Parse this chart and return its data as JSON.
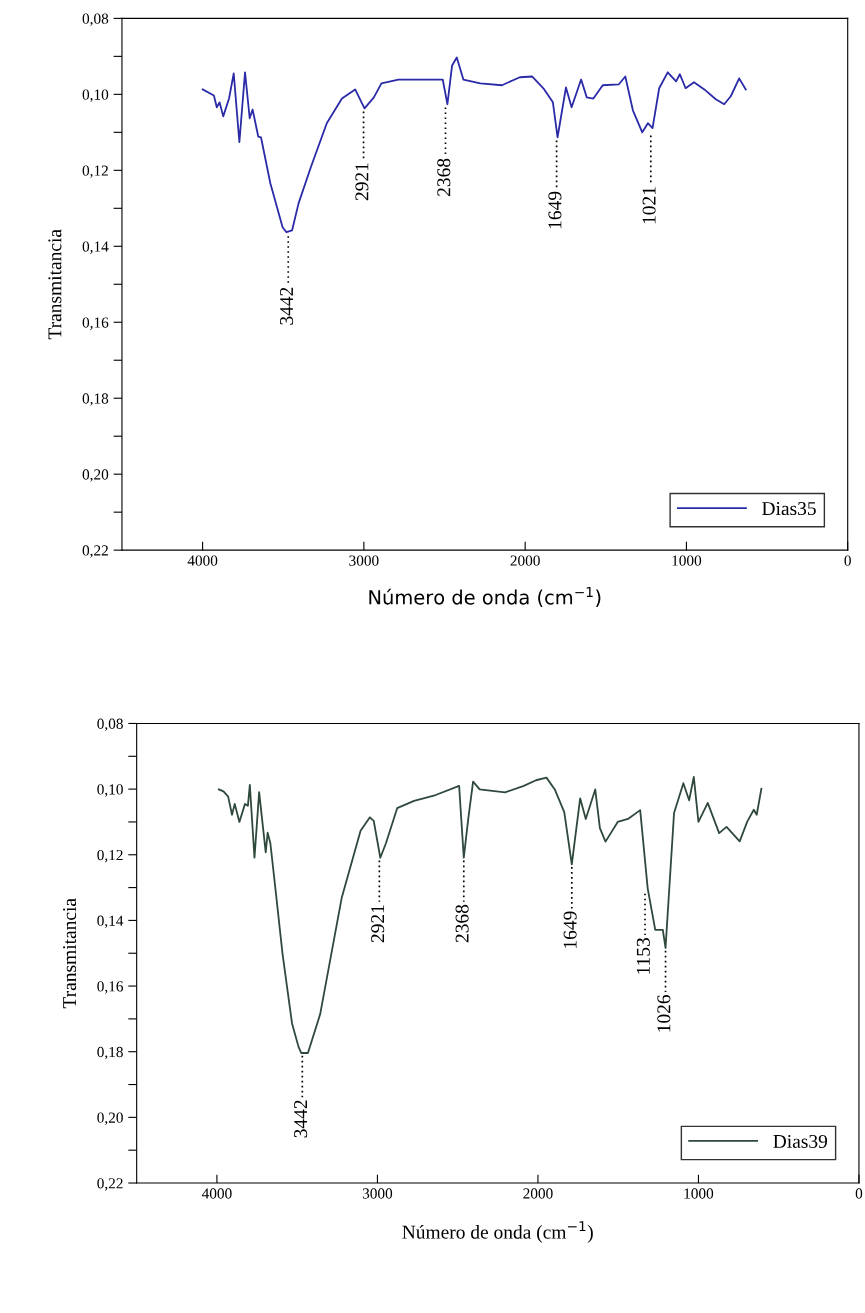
{
  "chart_data": [
    {
      "type": "line",
      "xlabel": "Número de onda (cm$^{−1}$)",
      "ylabel": "Transmitancia",
      "xlim": [
        4500,
        0
      ],
      "xticks": [
        4000,
        3000,
        2000,
        1000,
        0
      ],
      "ylim": [
        0.22,
        0.08
      ],
      "yticks": [
        {
          "value": 0.08,
          "label": "0,08"
        },
        {
          "value": 0.09,
          "label": null
        },
        {
          "value": 0.1,
          "label": "0,10"
        },
        {
          "value": 0.11,
          "label": null
        },
        {
          "value": 0.12,
          "label": "0,12"
        },
        {
          "value": 0.13,
          "label": null
        },
        {
          "value": 0.14,
          "label": "0,14"
        },
        {
          "value": 0.15,
          "label": null
        },
        {
          "value": 0.16,
          "label": "0,16"
        },
        {
          "value": 0.17,
          "label": null
        },
        {
          "value": 0.18,
          "label": "0,18"
        },
        {
          "value": 0.19,
          "label": null
        },
        {
          "value": 0.2,
          "label": "0,20"
        },
        {
          "value": 0.21,
          "label": null
        },
        {
          "value": 0.22,
          "label": "0,22"
        }
      ],
      "legend": "lower right",
      "grid": false,
      "series": [
        {
          "name": "Dias35",
          "color": "#2b2ba8",
          "x": [
            4000,
            3930,
            3912,
            3895,
            3872,
            3836,
            3807,
            3772,
            3737,
            3708,
            3690,
            3655,
            3638,
            3580,
            3504,
            3480,
            3445,
            3405,
            3329,
            3230,
            3136,
            3054,
            2996,
            2938,
            2891,
            2786,
            2511,
            2482,
            2453,
            2424,
            2383,
            2278,
            2144,
            2033,
            1957,
            1887,
            1828,
            1799,
            1747,
            1712,
            1653,
            1618,
            1577,
            1519,
            1420,
            1379,
            1332,
            1274,
            1239,
            1210,
            1169,
            1116,
            1064,
            1041,
            1005,
            953,
            889,
            818,
            766,
            725,
            673,
            632
          ],
          "values": [
            0.0987,
            0.1003,
            0.1034,
            0.1021,
            0.1058,
            0.1011,
            0.0945,
            0.1126,
            0.0942,
            0.1063,
            0.104,
            0.1111,
            0.1113,
            0.1234,
            0.135,
            0.1363,
            0.1358,
            0.1287,
            0.1192,
            0.1076,
            0.1011,
            0.0987,
            0.1037,
            0.1008,
            0.0971,
            0.0961,
            0.0961,
            0.1026,
            0.0924,
            0.0903,
            0.0961,
            0.0971,
            0.0976,
            0.0955,
            0.0953,
            0.0984,
            0.1021,
            0.1113,
            0.0982,
            0.1034,
            0.0961,
            0.1008,
            0.1011,
            0.0976,
            0.0974,
            0.0953,
            0.1042,
            0.11,
            0.1076,
            0.1089,
            0.0984,
            0.0942,
            0.0966,
            0.0947,
            0.0984,
            0.0968,
            0.0987,
            0.1013,
            0.1026,
            0.1005,
            0.0958,
            0.0987
          ]
        }
      ],
      "annotations": [
        {
          "text": "3442",
          "x": 3469,
          "y": 0.1365
        },
        {
          "text": "2921",
          "x": 3002,
          "y": 0.1037
        },
        {
          "text": "2368",
          "x": 2494,
          "y": 0.1026
        },
        {
          "text": "1649",
          "x": 1805,
          "y": 0.1113
        },
        {
          "text": "1021",
          "x": 1221,
          "y": 0.11
        }
      ]
    },
    {
      "type": "line",
      "xlabel": "Número de onda (cm$^{−1}$)",
      "ylabel": "Transmitancia",
      "xlim": [
        4500,
        0
      ],
      "xticks": [
        4000,
        3000,
        2000,
        1000,
        0
      ],
      "ylim": [
        0.22,
        0.08
      ],
      "yticks": [
        {
          "value": 0.08,
          "label": "0,08"
        },
        {
          "value": 0.09,
          "label": null
        },
        {
          "value": 0.1,
          "label": "0,10"
        },
        {
          "value": 0.11,
          "label": null
        },
        {
          "value": 0.12,
          "label": "0,12"
        },
        {
          "value": 0.13,
          "label": null
        },
        {
          "value": 0.14,
          "label": "0,14"
        },
        {
          "value": 0.15,
          "label": null
        },
        {
          "value": 0.16,
          "label": "0,16"
        },
        {
          "value": 0.17,
          "label": null
        },
        {
          "value": 0.18,
          "label": "0,18"
        },
        {
          "value": 0.19,
          "label": null
        },
        {
          "value": 0.2,
          "label": "0,20"
        },
        {
          "value": 0.21,
          "label": null
        },
        {
          "value": 0.22,
          "label": "0,22"
        }
      ],
      "legend": "lower right",
      "grid": false,
      "series": [
        {
          "name": "Dias39",
          "color": "#2f4a3c",
          "x": [
            3988,
            3959,
            3930,
            3906,
            3889,
            3860,
            3825,
            3807,
            3795,
            3766,
            3737,
            3696,
            3684,
            3667,
            3632,
            3591,
            3532,
            3491,
            3474,
            3433,
            3357,
            3222,
            3105,
            3047,
            3023,
            2982,
            2947,
            2877,
            2772,
            2637,
            2491,
            2462,
            2433,
            2404,
            2363,
            2205,
            2088,
            2012,
            1947,
            1895,
            1836,
            1789,
            1737,
            1702,
            1643,
            1614,
            1579,
            1503,
            1439,
            1363,
            1316,
            1269,
            1222,
            1205,
            1152,
            1094,
            1058,
            1029,
            1000,
            942,
            871,
            825,
            743,
            696,
            655,
            637,
            608
          ],
          "values": [
            0.1001,
            0.1007,
            0.1023,
            0.1078,
            0.1045,
            0.11,
            0.1045,
            0.1051,
            0.0987,
            0.1209,
            0.1009,
            0.1193,
            0.1133,
            0.1165,
            0.1319,
            0.1503,
            0.1714,
            0.1786,
            0.1804,
            0.1804,
            0.1686,
            0.133,
            0.1127,
            0.1086,
            0.1097,
            0.1209,
            0.1165,
            0.1058,
            0.1036,
            0.1018,
            0.099,
            0.1209,
            0.1086,
            0.0977,
            0.1001,
            0.101,
            0.099,
            0.0973,
            0.0965,
            0.1001,
            0.107,
            0.1229,
            0.1028,
            0.1091,
            0.1001,
            0.1119,
            0.116,
            0.11,
            0.1091,
            0.1064,
            0.1303,
            0.1429,
            0.1429,
            0.1484,
            0.1073,
            0.0982,
            0.1034,
            0.0963,
            0.11,
            0.1042,
            0.1134,
            0.1115,
            0.1159,
            0.1099,
            0.1063,
            0.1078,
            0.0999
          ]
        }
      ],
      "annotations": [
        {
          "text": "3442",
          "x": 3468,
          "y": 0.1804
        },
        {
          "text": "2921",
          "x": 2988,
          "y": 0.1209
        },
        {
          "text": "2368",
          "x": 2462,
          "y": 0.1209
        },
        {
          "text": "1649",
          "x": 1789,
          "y": 0.1229
        },
        {
          "text": "1153",
          "x": 1333,
          "y": 0.131
        },
        {
          "text": "1026",
          "x": 1205,
          "y": 0.1484
        }
      ]
    }
  ]
}
